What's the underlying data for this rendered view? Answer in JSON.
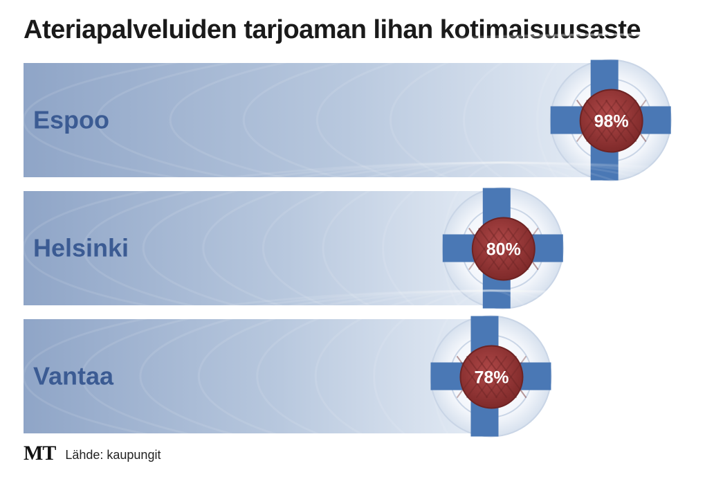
{
  "chart_data": {
    "type": "bar",
    "title": "Ateriapalveluiden tarjoaman lihan kotimaisuusaste",
    "categories": [
      "Espoo",
      "Helsinki",
      "Vantaa"
    ],
    "values": [
      98,
      80,
      78
    ],
    "value_labels": [
      "98%",
      "80%",
      "78%"
    ],
    "unit": "%",
    "orientation": "horizontal",
    "xlim": [
      0,
      100
    ],
    "grid": false,
    "legend": "none",
    "source": "Lähde: kaupungit",
    "publisher": "MT"
  },
  "colors": {
    "bar_dark": "#8fa5c7",
    "bar_light": "#e4ebf4",
    "label": "#3b5b93",
    "flag_blue": "#4a78b5",
    "plate": "#eef2f8",
    "meat": "#9e3d3d"
  }
}
